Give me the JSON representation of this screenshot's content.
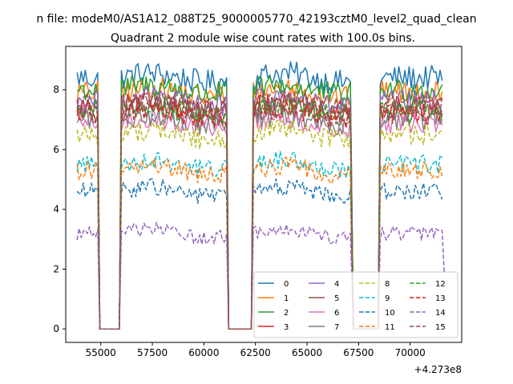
{
  "chart_data": {
    "type": "line",
    "suptitle": "n file: modeM0/AS1A12_088T25_9000005770_42193cztM0_level2_quad_clean",
    "title": "Quadrant 2 module wise count rates with 100.0s bins.",
    "xlabel": "",
    "ylabel": "",
    "offset_label": "+4.273e8",
    "x_offset": 427300000,
    "xlim": [
      53300,
      72500
    ],
    "ylim": [
      -0.45,
      9.45
    ],
    "x_ticks": [
      55000,
      57500,
      60000,
      62500,
      65000,
      67500,
      70000
    ],
    "x_tick_labels": [
      "55000",
      "57500",
      "60000",
      "62500",
      "65000",
      "67500",
      "70000"
    ],
    "y_ticks": [
      0,
      2,
      4,
      6,
      8
    ],
    "y_tick_labels": [
      "0",
      "2",
      "4",
      "6",
      "8"
    ],
    "grid": false,
    "legend_position": "lower-right",
    "legend_columns": 4,
    "bin_width_s": 100,
    "active_segments": [
      [
        53850,
        54850
      ],
      [
        56000,
        61100
      ],
      [
        62400,
        67150
      ],
      [
        68550,
        71600
      ]
    ],
    "series": [
      {
        "name": "0",
        "color": "#1f77b4",
        "dash": "solid",
        "level": 8.4
      },
      {
        "name": "1",
        "color": "#ff7f0e",
        "dash": "solid",
        "level": 7.9
      },
      {
        "name": "2",
        "color": "#2ca02c",
        "dash": "solid",
        "level": 8.0
      },
      {
        "name": "3",
        "color": "#d62728",
        "dash": "solid",
        "level": 7.4
      },
      {
        "name": "4",
        "color": "#9467bd",
        "dash": "solid",
        "level": 7.6
      },
      {
        "name": "5",
        "color": "#8c564b",
        "dash": "solid",
        "level": 7.3
      },
      {
        "name": "6",
        "color": "#e377c2",
        "dash": "solid",
        "level": 6.9
      },
      {
        "name": "7",
        "color": "#7f7f7f",
        "dash": "solid",
        "level": 7.0
      },
      {
        "name": "8",
        "color": "#bcbd22",
        "dash": "dashed",
        "level": 6.5
      },
      {
        "name": "9",
        "color": "#17becf",
        "dash": "dashed",
        "level": 5.5
      },
      {
        "name": "10",
        "color": "#1f77b4",
        "dash": "dashed",
        "level": 4.6
      },
      {
        "name": "11",
        "color": "#ff7f0e",
        "dash": "dashed",
        "level": 5.3
      },
      {
        "name": "12",
        "color": "#2ca02c",
        "dash": "dashed",
        "level": 7.3
      },
      {
        "name": "13",
        "color": "#d62728",
        "dash": "dashed",
        "level": 7.2
      },
      {
        "name": "14",
        "color": "#9467bd",
        "dash": "dashed",
        "level": 3.2
      },
      {
        "name": "15",
        "color": "#8c564b",
        "dash": "dashed",
        "level": 7.5
      }
    ]
  }
}
